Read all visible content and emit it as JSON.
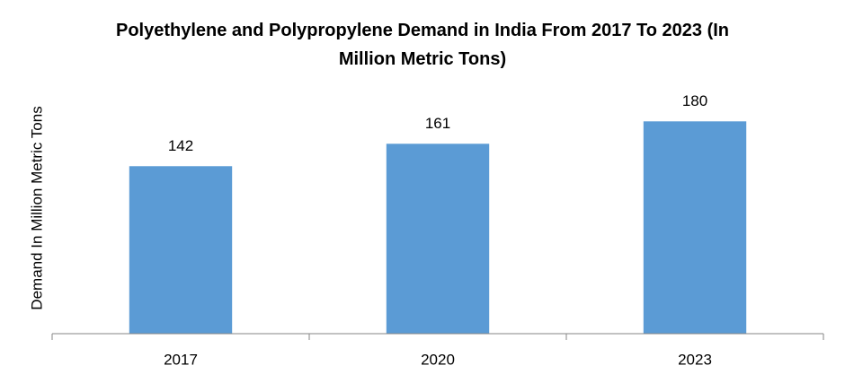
{
  "chart_data": {
    "type": "bar",
    "title": "Polyethylene and Polypropylene Demand in India From 2017 To 2023 (In Million Metric Tons)",
    "y_label": "Demand In Million Metric Tons",
    "categories": [
      "2017",
      "2020",
      "2023"
    ],
    "values": [
      142,
      161,
      180
    ],
    "color": "#5b9bd5",
    "ylim": [
      0,
      200
    ]
  }
}
